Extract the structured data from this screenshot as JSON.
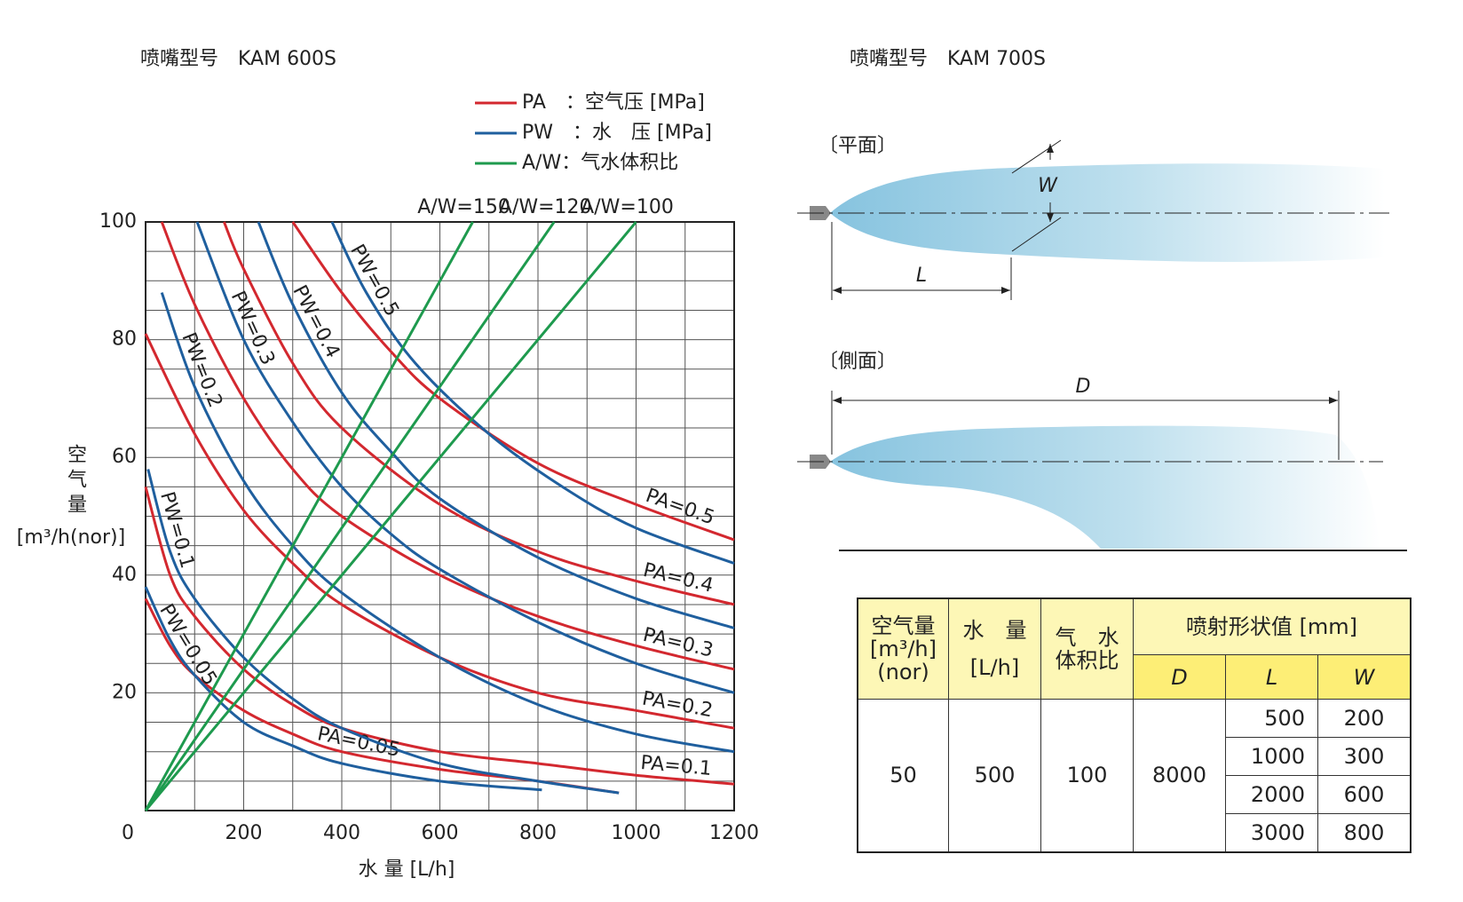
{
  "chart_data": {
    "type": "line",
    "title": "喷嘴型号　KAM 600S",
    "x_label": "水 量 [L/h]",
    "y_label": "空气量",
    "y_unit": "[m³/h(nor)]",
    "xlim": [
      0,
      1200
    ],
    "ylim": [
      0,
      100
    ],
    "xticks": [
      0,
      200,
      400,
      600,
      800,
      1000,
      1200
    ],
    "yticks": [
      20,
      40,
      60,
      80,
      100
    ],
    "xgrid": [
      100,
      200,
      300,
      400,
      500,
      600,
      700,
      800,
      900,
      1000,
      1100
    ],
    "ygrid": [
      5,
      10,
      15,
      20,
      25,
      30,
      35,
      40,
      45,
      50,
      55,
      60,
      65,
      70,
      75,
      80,
      85,
      90,
      95
    ],
    "legend": [
      {
        "label": "PA　：空气压 [MPa]",
        "color": "#d3282f"
      },
      {
        "label": "PW　：水　压 [MPa]",
        "color": "#1f5f9e"
      },
      {
        "label": "A/W：气水体积比",
        "color": "#1e9a4e"
      }
    ],
    "series": [
      {
        "name": "PA=0.5",
        "color": "#d3282f",
        "x": [
          300,
          400,
          500,
          600,
          800,
          1000,
          1200
        ],
        "values": [
          100,
          88,
          78,
          70,
          59,
          52,
          46
        ]
      },
      {
        "name": "PA=0.4",
        "color": "#d3282f",
        "x": [
          160,
          200,
          300,
          400,
          600,
          800,
          1000,
          1200
        ],
        "values": [
          100,
          92,
          76,
          65,
          52,
          44,
          39,
          35
        ]
      },
      {
        "name": "PA=0.3",
        "color": "#d3282f",
        "x": [
          33,
          100,
          200,
          300,
          400,
          600,
          800,
          1000,
          1200
        ],
        "values": [
          100,
          86,
          70,
          58,
          50,
          40,
          33,
          28,
          24
        ]
      },
      {
        "name": "PA=0.2",
        "color": "#d3282f",
        "x": [
          0,
          100,
          200,
          300,
          400,
          600,
          800,
          1000,
          1200
        ],
        "values": [
          81,
          64,
          51,
          42,
          35,
          26,
          20,
          17,
          14
        ]
      },
      {
        "name": "PA=0.1",
        "color": "#d3282f",
        "x": [
          0,
          50,
          100,
          200,
          300,
          400,
          600,
          800,
          1000,
          1200
        ],
        "values": [
          55,
          40,
          33,
          24,
          18,
          14,
          10,
          8,
          6,
          4.5
        ]
      },
      {
        "name": "PA=0.05",
        "color": "#d3282f",
        "x": [
          0,
          50,
          100,
          200,
          300,
          400,
          600,
          800,
          965
        ],
        "values": [
          36,
          28,
          23,
          17,
          13,
          10,
          7,
          5,
          3
        ]
      },
      {
        "name": "PW=0.5",
        "color": "#1f5f9e",
        "x": [
          380,
          450,
          550,
          700,
          850,
          1000,
          1200
        ],
        "values": [
          100,
          88,
          76,
          64,
          55,
          48,
          42
        ]
      },
      {
        "name": "PW=0.4",
        "color": "#1f5f9e",
        "x": [
          230,
          300,
          400,
          500,
          600,
          800,
          1000,
          1200
        ],
        "values": [
          100,
          86,
          71,
          61,
          53,
          43,
          36,
          31
        ]
      },
      {
        "name": "PW=0.3",
        "color": "#1f5f9e",
        "x": [
          105,
          200,
          300,
          400,
          500,
          600,
          800,
          1000,
          1200
        ],
        "values": [
          100,
          80,
          66,
          55,
          47,
          41,
          32,
          25,
          20
        ]
      },
      {
        "name": "PW=0.2",
        "color": "#1f5f9e",
        "x": [
          33,
          100,
          200,
          300,
          400,
          600,
          800,
          1000,
          1200
        ],
        "values": [
          88,
          72,
          56,
          45,
          37,
          26,
          18,
          13,
          10
        ]
      },
      {
        "name": "PW=0.1",
        "color": "#1f5f9e",
        "x": [
          5,
          50,
          100,
          200,
          300,
          400,
          600,
          800,
          965
        ],
        "values": [
          58,
          44,
          36,
          26,
          19,
          14,
          8,
          5,
          3
        ]
      },
      {
        "name": "PW=0.05",
        "color": "#1f5f9e",
        "x": [
          0,
          50,
          100,
          200,
          300,
          400,
          600,
          808
        ],
        "values": [
          38,
          29,
          23,
          15,
          11,
          8,
          5,
          3.5
        ]
      },
      {
        "name": "A/W=150",
        "color": "#1e9a4e",
        "x": [
          0,
          667
        ],
        "values": [
          0,
          100
        ]
      },
      {
        "name": "A/W=120",
        "color": "#1e9a4e",
        "x": [
          0,
          833
        ],
        "values": [
          0,
          100
        ]
      },
      {
        "name": "A/W=100",
        "color": "#1e9a4e",
        "x": [
          0,
          1000
        ],
        "values": [
          0,
          100
        ]
      }
    ]
  },
  "diagram": {
    "title": "喷嘴型号　KAM 700S",
    "plan": "〔平面〕",
    "side": "〔側面〕",
    "W": "W",
    "L": "L",
    "D": "D"
  },
  "table": {
    "header": {
      "air": [
        "空气量",
        "[m³/h]",
        "(nor)"
      ],
      "water": [
        "水　量",
        "[L/h]"
      ],
      "ratio": [
        "气　水",
        "体积比"
      ],
      "shape": "喷射形状值 [mm]",
      "sub": [
        "D",
        "L",
        "W"
      ]
    },
    "row": {
      "air": 50,
      "water": 500,
      "ratio": 100,
      "D": 8000,
      "LW": [
        [
          500,
          200
        ],
        [
          1000,
          300
        ],
        [
          2000,
          600
        ],
        [
          3000,
          800
        ]
      ]
    }
  }
}
